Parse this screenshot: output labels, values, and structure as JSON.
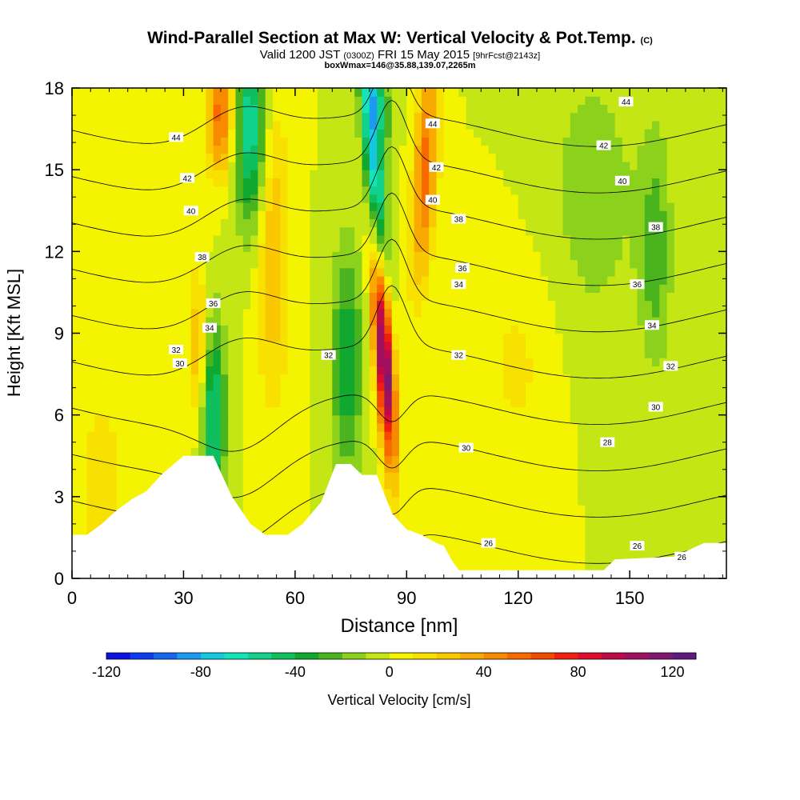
{
  "titles": {
    "main": "Wind-Parallel Section at Max W: Vertical Velocity & Pot.Temp.",
    "main_unit": "(C)",
    "sub_prefix": "Valid 1200 JST",
    "sub_utc": "(0300Z)",
    "sub_date": "FRI 15 May 2015",
    "sub_fcst": "[9hrFcst@2143z]",
    "box": "boxWmax=146@35.88,139.07,2265m"
  },
  "chart_data": {
    "type": "heatmap",
    "xlabel": "Distance [nm]",
    "ylabel": "Height [Kft MSL]",
    "xlim": [
      0,
      176
    ],
    "ylim": [
      0,
      18
    ],
    "x_ticks": [
      0,
      30,
      60,
      90,
      120,
      150
    ],
    "y_ticks": [
      0,
      3,
      6,
      9,
      12,
      15,
      18
    ],
    "colorbar": {
      "label": "Vertical Velocity [cm/s]",
      "range": [
        -120,
        130
      ],
      "step": 10,
      "ticks": [
        -120,
        -80,
        -40,
        0,
        40,
        80,
        120
      ],
      "colors": [
        "#0b12e0",
        "#0d3cf0",
        "#1468f0",
        "#1a9af0",
        "#14c8e0",
        "#12e6b8",
        "#10d28c",
        "#0fbe5c",
        "#10a82e",
        "#4ab41e",
        "#8cd21c",
        "#c4e614",
        "#f4f400",
        "#f8e000",
        "#fac800",
        "#f8aa00",
        "#f88a00",
        "#f86a00",
        "#f44a00",
        "#ee1e10",
        "#dc0e30",
        "#bc0a4a",
        "#a0105e",
        "#801870",
        "#5e1a80"
      ]
    },
    "theta_contours": [
      26,
      28,
      30,
      32,
      34,
      36,
      38,
      40,
      42,
      44
    ],
    "theta_labels": [
      {
        "x": 28,
        "y": 16.2,
        "v": 44
      },
      {
        "x": 97,
        "y": 16.7,
        "v": 44
      },
      {
        "x": 149,
        "y": 17.5,
        "v": 44
      },
      {
        "x": 31,
        "y": 14.7,
        "v": 42
      },
      {
        "x": 98,
        "y": 15.1,
        "v": 42
      },
      {
        "x": 143,
        "y": 15.9,
        "v": 42
      },
      {
        "x": 32,
        "y": 13.5,
        "v": 40
      },
      {
        "x": 97,
        "y": 13.9,
        "v": 40
      },
      {
        "x": 148,
        "y": 14.6,
        "v": 40
      },
      {
        "x": 35,
        "y": 11.8,
        "v": 38
      },
      {
        "x": 104,
        "y": 13.2,
        "v": 38
      },
      {
        "x": 157,
        "y": 12.9,
        "v": 38
      },
      {
        "x": 38,
        "y": 10.1,
        "v": 36
      },
      {
        "x": 105,
        "y": 11.4,
        "v": 36
      },
      {
        "x": 152,
        "y": 10.8,
        "v": 36
      },
      {
        "x": 37,
        "y": 9.2,
        "v": 34
      },
      {
        "x": 104,
        "y": 10.8,
        "v": 34
      },
      {
        "x": 156,
        "y": 9.3,
        "v": 34
      },
      {
        "x": 28,
        "y": 8.4,
        "v": 32
      },
      {
        "x": 69,
        "y": 8.2,
        "v": 32
      },
      {
        "x": 104,
        "y": 8.2,
        "v": 32
      },
      {
        "x": 161,
        "y": 7.8,
        "v": 32
      },
      {
        "x": 29,
        "y": 7.9,
        "v": 30
      },
      {
        "x": 106,
        "y": 4.8,
        "v": 30
      },
      {
        "x": 157,
        "y": 6.3,
        "v": 30
      },
      {
        "x": 144,
        "y": 5.0,
        "v": 28
      },
      {
        "x": 112,
        "y": 1.3,
        "v": 26
      },
      {
        "x": 152,
        "y": 1.2,
        "v": 26
      },
      {
        "x": 164,
        "y": 0.8,
        "v": 26
      }
    ]
  }
}
